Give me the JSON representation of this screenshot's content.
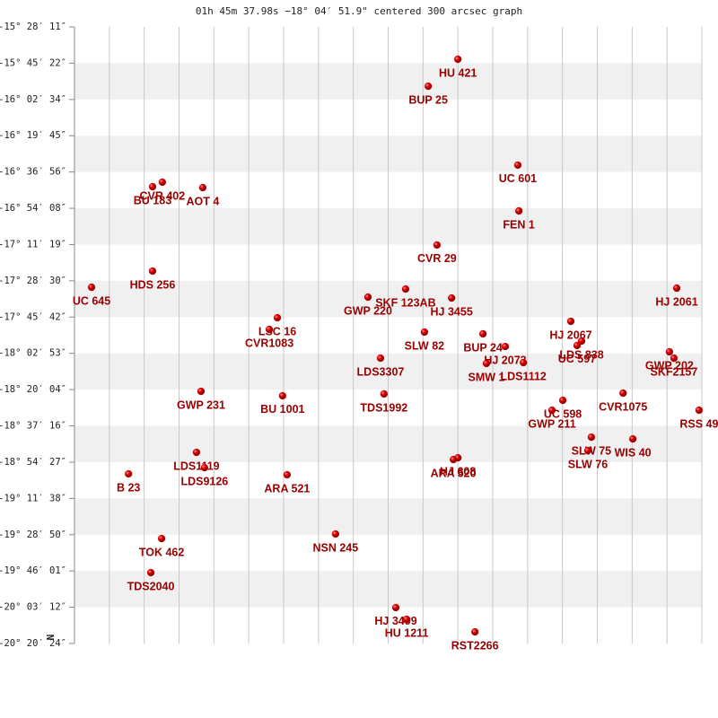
{
  "chart_data": {
    "type": "scatter",
    "title": "01h 45m 37.98s −18° 04′ 51.9\" centered 300 arcsec graph",
    "north_label": "N",
    "color": "#cc0000",
    "label_color": "#990000",
    "xlim": [
      0,
      18
    ],
    "xticks": [
      0,
      1,
      2,
      3,
      4,
      5,
      6,
      7,
      8,
      9,
      10,
      11,
      12,
      13,
      14,
      15,
      16,
      17,
      18
    ],
    "ylim": [
      -20.34,
      -15.4697
    ],
    "yticks": [
      {
        "value": -15.4697,
        "label": "-15° 28′ 11″"
      },
      {
        "value": -15.7561,
        "label": "-15° 45′ 22″"
      },
      {
        "value": -16.0428,
        "label": "-16° 02′ 34″"
      },
      {
        "value": -16.3292,
        "label": "-16° 19′ 45″"
      },
      {
        "value": -16.6156,
        "label": "-16° 36′ 56″"
      },
      {
        "value": -16.9022,
        "label": "-16° 54′ 08″"
      },
      {
        "value": -17.1886,
        "label": "-17° 11′ 19″"
      },
      {
        "value": -17.475,
        "label": "-17° 28′ 30″"
      },
      {
        "value": -17.7617,
        "label": "-17° 45′ 42″"
      },
      {
        "value": -18.0481,
        "label": "-18° 02′ 53″"
      },
      {
        "value": -18.3344,
        "label": "-18° 20′ 04″"
      },
      {
        "value": -18.6211,
        "label": "-18° 37′ 16″"
      },
      {
        "value": -18.9075,
        "label": "-18° 54′ 27″"
      },
      {
        "value": -19.1939,
        "label": "-19° 11′ 38″"
      },
      {
        "value": -19.4806,
        "label": "-19° 28′ 50″"
      },
      {
        "value": -19.7669,
        "label": "-19° 46′ 01″"
      },
      {
        "value": -20.0533,
        "label": "-20° 03′ 12″"
      },
      {
        "value": -20.34,
        "label": "-20° 20′ 24″"
      }
    ],
    "point_labels": [
      "HU 421",
      "BUP 25",
      "UC 601",
      "FEN 1",
      "CVR 402",
      "BU 183",
      "AOT 4",
      "CVR 29",
      "HDS 256",
      "UC 645",
      "HJ 2061",
      "SKF 123AB",
      "GWP 220",
      "HJ 3455",
      "LSC 16",
      "HJ 2067",
      "CVR1083",
      "SLW 82",
      "BUP 24",
      "LDS 838",
      "UC 597",
      "HJ 2073",
      "GWP 202",
      "LDS3307",
      "SKF2157",
      "LDS1112",
      "SMW 1",
      "GWP 231",
      "TDS1992",
      "CVR1075",
      "BU 1001",
      "UC 598",
      "GWP 211",
      "RSS 49",
      "SLW 75",
      "WIS 40",
      "SLW 76",
      "LDS1119",
      "HJ 608",
      "ARA 520",
      "LDS9126",
      "B 23",
      "ARA 521",
      "NSN 245",
      "TOK 462",
      "TDS2040",
      "HJ 3499",
      "HU 1211",
      "RST2266"
    ],
    "x": [
      11.0,
      10.15,
      12.72,
      12.75,
      2.52,
      2.24,
      3.68,
      10.4,
      2.24,
      0.49,
      17.28,
      9.5,
      8.42,
      10.82,
      5.82,
      14.24,
      5.59,
      10.04,
      11.72,
      14.55,
      14.42,
      12.36,
      17.07,
      8.78,
      17.2,
      12.88,
      11.82,
      3.63,
      8.88,
      15.74,
      5.97,
      14.01,
      13.7,
      17.92,
      14.83,
      16.02,
      14.73,
      3.5,
      11.0,
      10.87,
      3.73,
      1.55,
      6.1,
      7.49,
      2.5,
      2.19,
      9.22,
      9.53,
      11.49
    ],
    "values": [
      -15.725,
      -15.938,
      -16.561,
      -16.923,
      -16.696,
      -16.732,
      -16.739,
      -17.192,
      -17.398,
      -17.526,
      -17.533,
      -17.54,
      -17.604,
      -17.611,
      -17.767,
      -17.795,
      -17.859,
      -17.88,
      -17.894,
      -17.951,
      -17.986,
      -17.994,
      -18.036,
      -18.086,
      -18.086,
      -18.121,
      -18.128,
      -18.348,
      -18.369,
      -18.362,
      -18.383,
      -18.419,
      -18.497,
      -18.497,
      -18.71,
      -18.724,
      -18.816,
      -18.83,
      -18.873,
      -18.887,
      -18.951,
      -19.0,
      -19.007,
      -19.475,
      -19.511,
      -19.78,
      -20.056,
      -20.149,
      -20.248
    ]
  }
}
